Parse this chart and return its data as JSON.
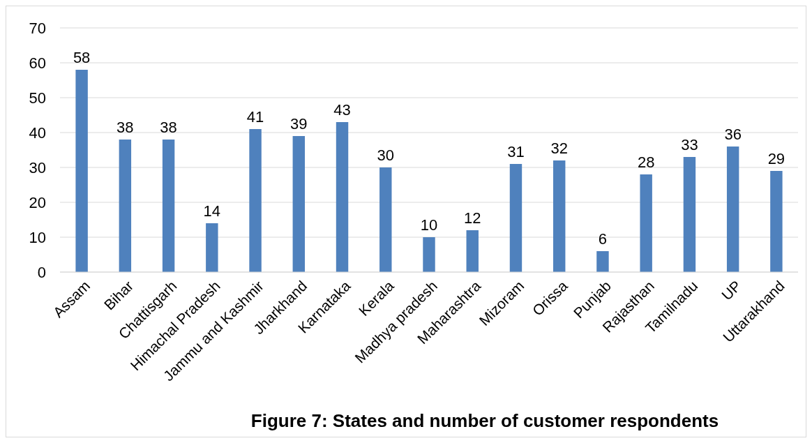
{
  "chart_data": {
    "type": "bar",
    "title": "Figure 7: States and number of customer respondents",
    "categories": [
      "Assam",
      "Bihar",
      "Chattisgarh",
      "Himachal Pradesh",
      "Jammu and Kashmir",
      "Jharkhand",
      "Karnataka",
      "Kerala",
      "Madhya pradesh",
      "Maharashtra",
      "Mizoram",
      "Orissa",
      "Punjab",
      "Rajasthan",
      "Tamilnadu",
      "UP",
      "Uttarakhand"
    ],
    "values": [
      58,
      38,
      38,
      14,
      41,
      39,
      43,
      30,
      10,
      12,
      31,
      32,
      6,
      28,
      33,
      36,
      29
    ],
    "color": "#4f81bd",
    "ylim": [
      0,
      70
    ],
    "yticks": [
      0,
      10,
      20,
      30,
      40,
      50,
      60,
      70
    ],
    "grid": "y",
    "data_labels": true
  }
}
